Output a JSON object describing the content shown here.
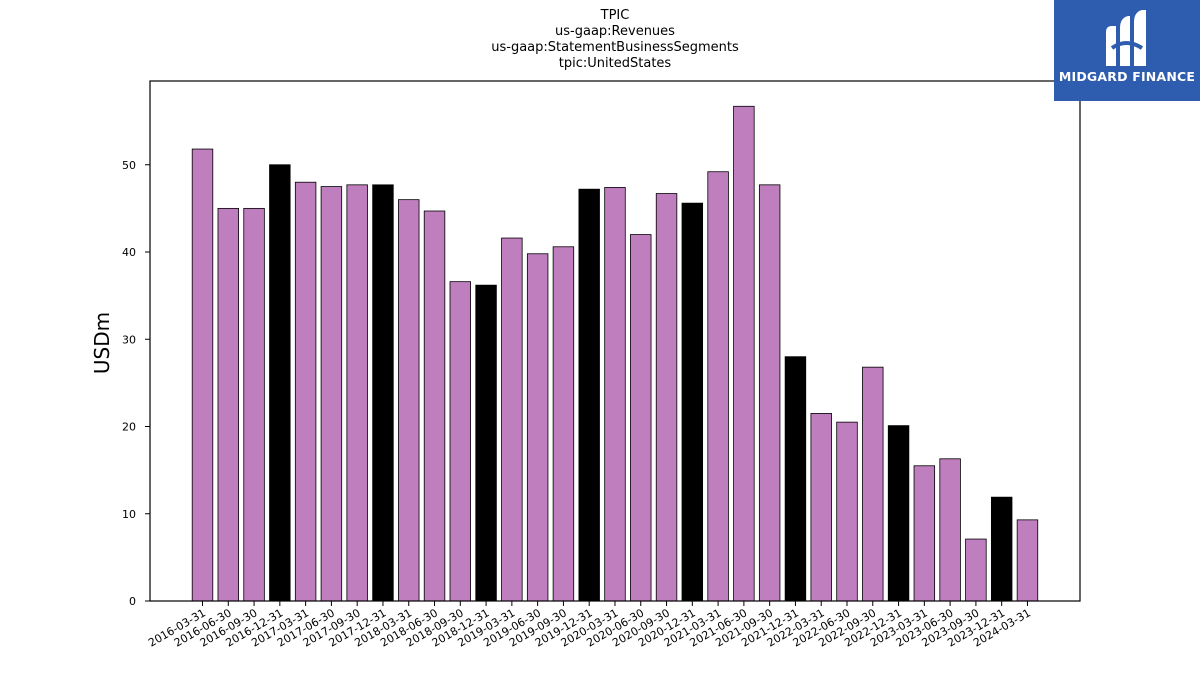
{
  "chart_data": {
    "type": "bar",
    "title_lines": [
      "TPIC",
      "us-gaap:Revenues",
      "us-gaap:StatementBusinessSegments",
      "tpic:UnitedStates"
    ],
    "ylabel": "USDm",
    "xlabel": "",
    "ylim": [
      0,
      59.6
    ],
    "yticks": [
      0,
      10,
      20,
      30,
      40,
      50
    ],
    "grid": false,
    "colors": {
      "quarter": "#bf7fbf",
      "year_end": "#000000"
    },
    "categories": [
      "2016-03-31",
      "2016-06-30",
      "2016-09-30",
      "2016-12-31",
      "2017-03-31",
      "2017-06-30",
      "2017-09-30",
      "2017-12-31",
      "2018-03-31",
      "2018-06-30",
      "2018-09-30",
      "2018-12-31",
      "2019-03-31",
      "2019-06-30",
      "2019-09-30",
      "2019-12-31",
      "2020-03-31",
      "2020-06-30",
      "2020-09-30",
      "2020-12-31",
      "2021-03-31",
      "2021-06-30",
      "2021-09-30",
      "2021-12-31",
      "2022-03-31",
      "2022-06-30",
      "2022-09-30",
      "2022-12-31",
      "2023-03-31",
      "2023-06-30",
      "2023-09-30",
      "2023-12-31",
      "2024-03-31"
    ],
    "values": [
      51.8,
      45.0,
      45.0,
      50.0,
      48.0,
      47.5,
      47.7,
      47.7,
      46.0,
      44.7,
      36.6,
      36.2,
      41.6,
      39.8,
      40.6,
      47.2,
      47.4,
      42.0,
      46.7,
      45.6,
      49.2,
      56.7,
      47.7,
      28.0,
      21.5,
      20.5,
      26.8,
      20.1,
      15.5,
      16.3,
      7.1,
      11.9,
      9.3
    ]
  },
  "logo": {
    "text": "MIDGARD FINANCE"
  }
}
